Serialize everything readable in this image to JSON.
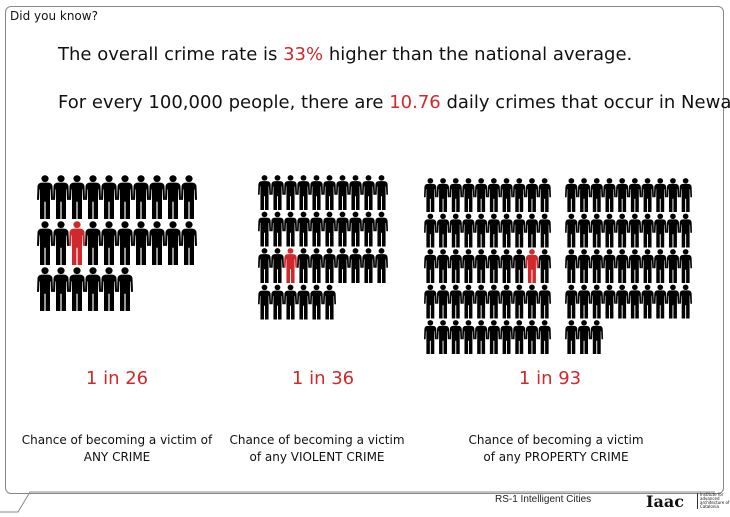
{
  "header": {
    "title": "Did you know?"
  },
  "facts": [
    {
      "before": "The overall crime rate is ",
      "highlight": "33%",
      "after": " higher than the national average."
    },
    {
      "before": "For every 100,000 people, there are ",
      "highlight": "10.76",
      "after": " daily crimes that occur in Newark."
    }
  ],
  "colors": {
    "accent": "#d0292b",
    "figure": "#000000"
  },
  "panels": [
    {
      "ratio": "1 in 26",
      "caption_line1": "Chance of becoming a victim of",
      "caption_line2": "ANY CRIME",
      "blocks": [
        {
          "per_row": 10,
          "count": 26,
          "highlight_index": 12
        }
      ]
    },
    {
      "ratio": "1 in 36",
      "caption_line1": "Chance of becoming a victim",
      "caption_line2": "of any VIOLENT CRIME",
      "blocks": [
        {
          "per_row": 10,
          "count": 36,
          "highlight_index": 22
        }
      ]
    },
    {
      "ratio": "1 in 93",
      "caption_line1": "Chance of becoming a victim",
      "caption_line2": "of any PROPERTY CRIME",
      "blocks": [
        {
          "per_row": 10,
          "count": 50,
          "highlight_index": 28
        },
        {
          "per_row": 10,
          "count": 43,
          "highlight_index": -1
        }
      ]
    }
  ],
  "footer": {
    "course": "RS-1 Intelligent Cities",
    "logo": "Iaac",
    "logo_sub": "Institute for advanced architecture of Catalonia"
  }
}
